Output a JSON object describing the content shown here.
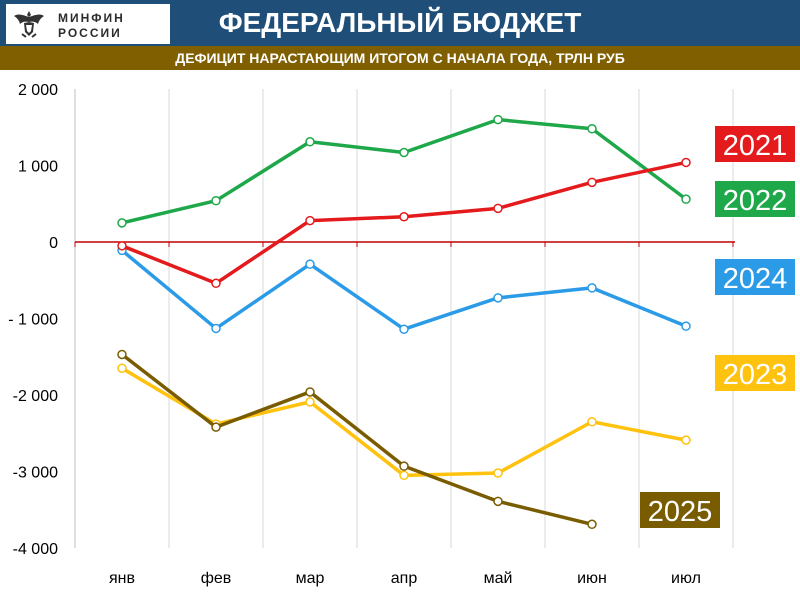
{
  "header": {
    "logo_line1": "МИНФИН",
    "logo_line2": "РОССИИ",
    "logo_icon": "eagle-emblem-icon",
    "title": "ФЕДЕРАЛЬНЫЙ БЮДЖЕТ",
    "subtitle": "ДЕФИЦИТ НАРАСТАЮЩИМ ИТОГОМ С НАЧАЛА ГОДА, ТРЛН РУБ"
  },
  "chart_data": {
    "type": "line",
    "categories": [
      "янв",
      "фев",
      "мар",
      "апр",
      "май",
      "июн",
      "июл"
    ],
    "y_ticks": [
      2000,
      1000,
      0,
      -1000,
      -2000,
      -3000,
      -4000
    ],
    "y_tick_labels": [
      "2 000",
      "1 000",
      "0",
      "- 1 000",
      "-2 000",
      "-3 000",
      "-4 000"
    ],
    "ylim": [
      -4000,
      2000
    ],
    "grid": "vertical",
    "zero_line_color": "#c00000",
    "series": [
      {
        "name": "2021",
        "color": "#e41a1c",
        "label_bg": "#e41a1c",
        "label_text": "#ffffff",
        "values": [
          -50,
          -540,
          280,
          330,
          440,
          780,
          1040
        ]
      },
      {
        "name": "2022",
        "color": "#1ea84a",
        "label_bg": "#1ea84a",
        "label_text": "#ffffff",
        "values": [
          250,
          540,
          1310,
          1170,
          1600,
          1480,
          560
        ]
      },
      {
        "name": "2024",
        "color": "#2b9be8",
        "label_bg": "#2b9be8",
        "label_text": "#ffffff",
        "values": [
          -110,
          -1130,
          -290,
          -1140,
          -730,
          -600,
          -1100
        ]
      },
      {
        "name": "2023",
        "color": "#ffc20e",
        "label_bg": "#ffc20e",
        "label_text": "#ffffff",
        "values": [
          -1650,
          -2380,
          -2090,
          -3050,
          -3020,
          -2350,
          -2590
        ]
      },
      {
        "name": "2025",
        "color": "#7a5c00",
        "label_bg": "#7a5c00",
        "label_text": "#ffffff",
        "values": [
          -1470,
          -2420,
          -1960,
          -2930,
          -3390,
          -3690,
          null
        ]
      }
    ]
  }
}
